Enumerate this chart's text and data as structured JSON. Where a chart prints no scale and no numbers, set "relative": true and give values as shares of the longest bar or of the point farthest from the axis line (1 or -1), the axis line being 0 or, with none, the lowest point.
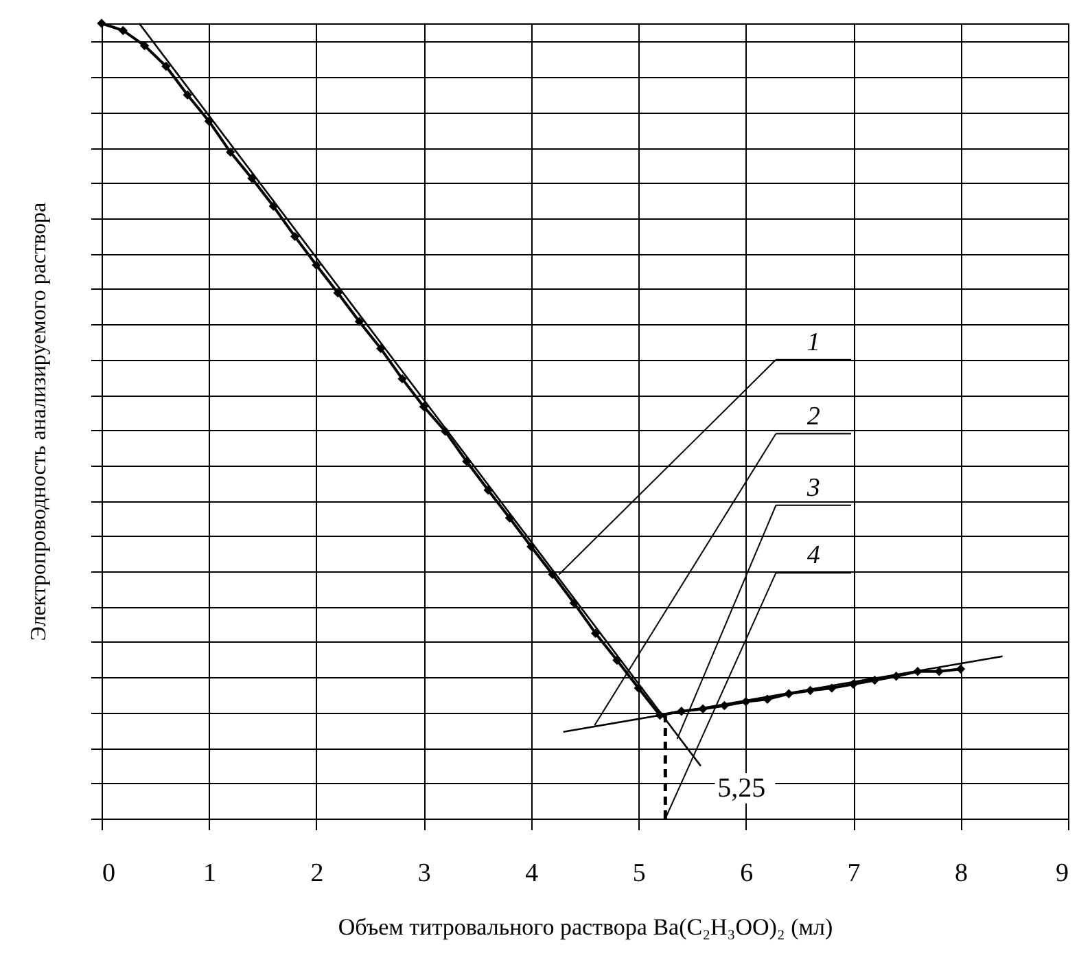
{
  "chart_data": {
    "type": "line",
    "relative": true,
    "xlabel": "Объем титровального раствора Ba(C₂H₃OO)₂ (мл)",
    "ylabel": "Электропроводность анализируемого раствора",
    "xlim": [
      0,
      9
    ],
    "xticks": [
      0,
      1,
      2,
      3,
      4,
      5,
      6,
      7,
      8,
      9
    ],
    "grid": true,
    "legend": false,
    "tick_labels": "x",
    "marker": "diamond",
    "line_style": "solid",
    "series": [
      {
        "color": "#000000",
        "x": [
          0,
          0.2,
          0.4,
          0.6,
          0.8,
          1.0,
          1.2,
          1.4,
          1.6,
          1.8,
          2.0,
          2.2,
          2.4,
          2.6,
          2.8,
          3.0,
          3.2,
          3.4,
          3.6,
          3.8,
          4.0,
          4.2,
          4.4,
          4.6,
          4.8,
          5.0,
          5.2,
          5.4,
          5.6,
          5.8,
          6.0,
          6.2,
          6.4,
          6.6,
          6.8,
          7.0,
          7.2,
          7.4,
          7.6,
          7.8,
          8.0
        ],
        "values": [
          1,
          0.991,
          0.972,
          0.946,
          0.91,
          0.877,
          0.838,
          0.805,
          0.77,
          0.732,
          0.696,
          0.661,
          0.625,
          0.591,
          0.553,
          0.518,
          0.487,
          0.449,
          0.413,
          0.378,
          0.342,
          0.307,
          0.271,
          0.233,
          0.199,
          0.164,
          0.13,
          0.135,
          0.138,
          0.142,
          0.147,
          0.15,
          0.157,
          0.161,
          0.164,
          0.169,
          0.174,
          0.179,
          0.185,
          0.185,
          0.188
        ]
      },
      {
        "type": "line",
        "marker": "none",
        "color": "#000000",
        "x": [
          0.35,
          5.58
        ],
        "values": [
          1,
          0.066
        ]
      },
      {
        "type": "line",
        "marker": "none",
        "color": "#000000",
        "x": [
          4.3,
          8.39
        ],
        "values": [
          0.109,
          0.204
        ]
      }
    ],
    "ref_lines": [
      {
        "axis": "x",
        "value": 5.25,
        "label": "5,25",
        "line_style": "dashed",
        "color": "#000000"
      }
    ],
    "annotations": [
      {
        "text": "1",
        "x": 4.26,
        "y": 0.307
      },
      {
        "text": "2",
        "x": 4.59,
        "y": 0.117
      },
      {
        "text": "3",
        "x": 5.36,
        "y": 0.1
      },
      {
        "text": "4",
        "x": 5.25,
        "y": 0
      }
    ]
  }
}
